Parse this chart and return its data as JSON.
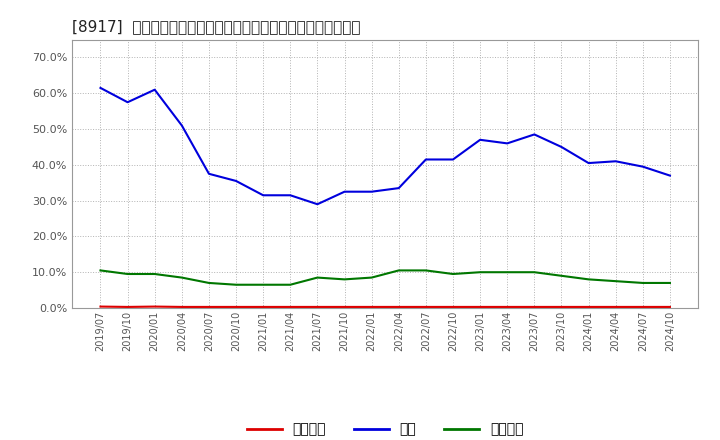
{
  "title": "[8917]  売上債権、在庫、買入債務の総資産に対する比率の推移",
  "background_color": "#ffffff",
  "plot_bg_color": "#ffffff",
  "grid_color": "#aaaaaa",
  "x_labels": [
    "2019/07",
    "2019/10",
    "2020/01",
    "2020/04",
    "2020/07",
    "2020/10",
    "2021/01",
    "2021/04",
    "2021/07",
    "2021/10",
    "2022/01",
    "2022/04",
    "2022/07",
    "2022/10",
    "2023/01",
    "2023/04",
    "2023/07",
    "2023/10",
    "2024/01",
    "2024/04",
    "2024/07",
    "2024/10"
  ],
  "inventory_color": "#0000dd",
  "inventory_values": [
    61.5,
    57.5,
    61.0,
    51.0,
    37.5,
    35.5,
    31.5,
    31.5,
    29.0,
    32.5,
    32.5,
    33.5,
    41.5,
    41.5,
    47.0,
    46.0,
    48.5,
    45.0,
    40.5,
    41.0,
    39.5,
    37.0
  ],
  "payables_color": "#007700",
  "payables_values": [
    10.5,
    9.5,
    9.5,
    8.5,
    7.0,
    6.5,
    6.5,
    6.5,
    8.5,
    8.0,
    8.5,
    10.5,
    10.5,
    9.5,
    10.0,
    10.0,
    10.0,
    9.0,
    8.0,
    7.5,
    7.0,
    7.0
  ],
  "receivables_color": "#dd0000",
  "receivables_values": [
    0.4,
    0.3,
    0.4,
    0.3,
    0.3,
    0.3,
    0.3,
    0.3,
    0.3,
    0.3,
    0.3,
    0.3,
    0.3,
    0.3,
    0.3,
    0.3,
    0.3,
    0.3,
    0.3,
    0.3,
    0.3,
    0.3
  ],
  "ylim": [
    0.0,
    75.0
  ],
  "yticks": [
    0.0,
    10.0,
    20.0,
    30.0,
    40.0,
    50.0,
    60.0,
    70.0
  ],
  "legend_items": [
    {
      "label": "売上債権",
      "color": "#dd0000"
    },
    {
      "label": "在庫",
      "color": "#0000dd"
    },
    {
      "label": "買入債務",
      "color": "#007700"
    }
  ]
}
